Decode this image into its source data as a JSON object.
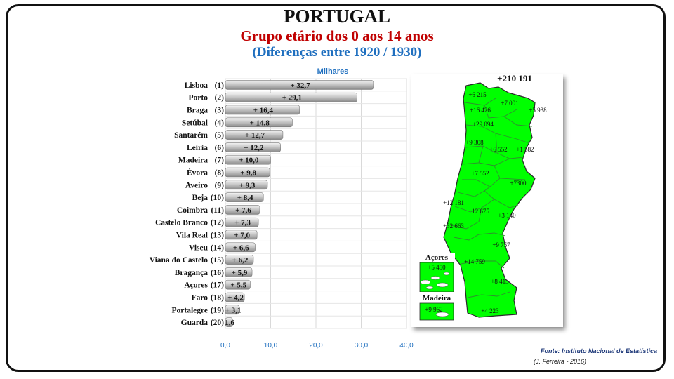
{
  "header": {
    "title": "PORTUGAL",
    "subtitle": "Grupo etário dos 0 aos 14 anos",
    "period": "(Diferenças entre 1920 / 1930)"
  },
  "chart_data": {
    "type": "bar",
    "orientation": "horizontal",
    "unit_label": "Milhares",
    "categories": [
      "Lisboa",
      "Porto",
      "Braga",
      "Setúbal",
      "Santarém",
      "Leiria",
      "Madeira",
      "Évora",
      "Aveiro",
      "Beja",
      "Coimbra",
      "Castelo Branco",
      "Vila Real",
      "Viseu",
      "Viana do Castelo",
      "Bragança",
      "Açores",
      "Faro",
      "Portalegre",
      "Guarda"
    ],
    "ranks": [
      "(1)",
      "(2)",
      "(3)",
      "(4)",
      "(5)",
      "(6)",
      "(7)",
      "(8)",
      "(9)",
      "(10)",
      "(11)",
      "(12)",
      "(13)",
      "(14)",
      "(15)",
      "(16)",
      "(17)",
      "(18)",
      "(19)",
      "(20)"
    ],
    "values": [
      32.7,
      29.1,
      16.4,
      14.8,
      12.7,
      12.2,
      10.0,
      9.8,
      9.3,
      8.4,
      7.6,
      7.3,
      7.0,
      6.6,
      6.2,
      5.9,
      5.5,
      4.2,
      3.1,
      1.6
    ],
    "value_labels": [
      "+ 32,7",
      "+ 29,1",
      "+ 16,4",
      "+ 14,8",
      "+ 12,7",
      "+ 12,2",
      "+ 10,0",
      "+ 9,8",
      "+ 9,3",
      "+ 8,4",
      "+ 7,6",
      "+ 7,3",
      "+ 7,0",
      "+ 6,6",
      "+ 6,2",
      "+ 5,9",
      "+ 5,5",
      "+ 4,2",
      "+ 3,1",
      "1,6"
    ],
    "xlim": [
      0,
      40
    ],
    "xticks": [
      "0,0",
      "10,0",
      "20,0",
      "30,0",
      "40,0"
    ],
    "grid": true,
    "bar_color": "#c8c8c8",
    "axis_color": "#1f6fbf"
  },
  "map": {
    "total_label": "+210 191",
    "fill_color": "#00ff00",
    "labels": [
      "+6 215",
      "+7 001",
      "+16 426",
      "+5 938",
      "+29 094",
      "+9 308",
      "+6 552",
      "+1 582",
      "+7 552",
      "+7300",
      "+12 181",
      "+12 675",
      "+3 140",
      "+32 663",
      "+9 757",
      "+14 759",
      "+8 413",
      "+4 223"
    ],
    "azores": {
      "name": "Açores",
      "value": "+5 450"
    },
    "madeira": {
      "name": "Madeira",
      "value": "+9 962"
    }
  },
  "footer": {
    "source": "Fonte: Instituto Nacional de Estatística",
    "author": "(J. Ferreira - 2016)"
  }
}
